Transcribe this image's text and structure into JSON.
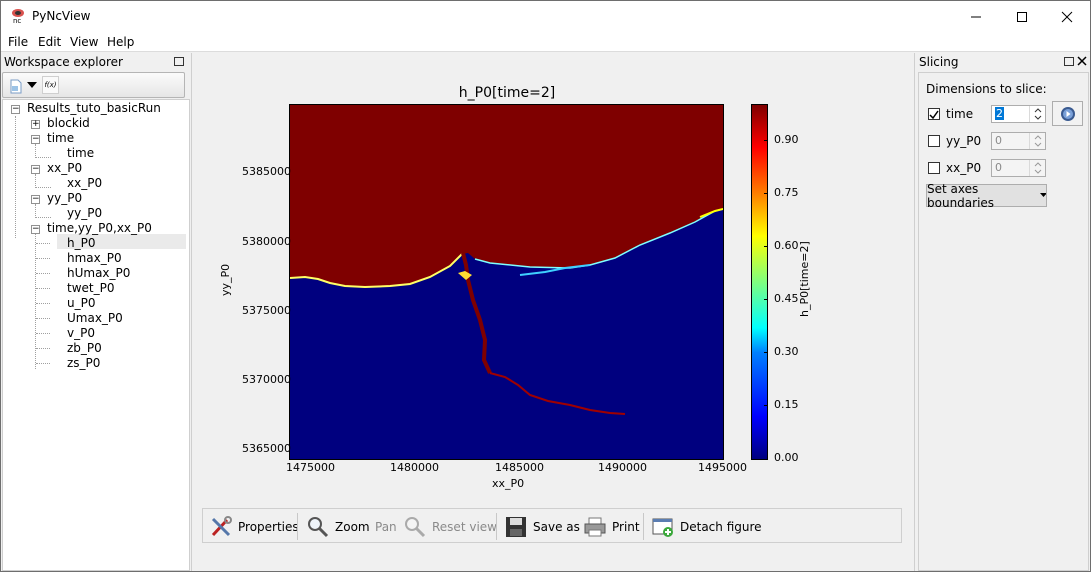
{
  "window": {
    "title": "PyNcView"
  },
  "menu": [
    "File",
    "Edit",
    "View",
    "Help"
  ],
  "workspace": {
    "title": "Workspace explorer",
    "root": "Results_tuto_basicRun",
    "nodes": [
      "blockid",
      "time",
      "time",
      "xx_P0",
      "xx_P0",
      "yy_P0",
      "yy_P0",
      "time,yy_P0,xx_P0"
    ],
    "variables": [
      "h_P0",
      "hmax_P0",
      "hUmax_P0",
      "twet_P0",
      "u_P0",
      "Umax_P0",
      "v_P0",
      "zb_P0",
      "zs_P0"
    ]
  },
  "figure": {
    "title": "h_P0[time=2]",
    "xlabel": "xx_P0",
    "ylabel": "yy_P0",
    "colorbar_label": "h_P0[time=2]",
    "xticks": [
      "1475000",
      "1480000",
      "1485000",
      "1490000",
      "1495000"
    ],
    "yticks": [
      "5385000",
      "5380000",
      "5375000",
      "5370000",
      "5365000"
    ],
    "cbticks": [
      "0.90",
      "0.75",
      "0.60",
      "0.45",
      "0.30",
      "0.15",
      "0.00"
    ],
    "colors": {
      "land": "#7f0000",
      "water": "#00007f"
    }
  },
  "chart_data": {
    "type": "heatmap",
    "title": "h_P0[time=2]",
    "xlabel": "xx_P0",
    "ylabel": "yy_P0",
    "xlim": [
      1474500,
      1495000
    ],
    "ylim": [
      5364000,
      5389000
    ],
    "colorbar": {
      "label": "h_P0[time=2]",
      "range": [
        0,
        0.99
      ],
      "ticks": [
        0,
        0.15,
        0.3,
        0.45,
        0.6,
        0.75,
        0.9
      ],
      "colormap": "jet"
    }
  },
  "toolbar": {
    "properties": "Properties",
    "zoom": "Zoom",
    "pan": "Pan",
    "reset": "Reset view",
    "save": "Save as",
    "print": "Print",
    "detach": "Detach figure"
  },
  "slicing": {
    "title": "Slicing",
    "heading": "Dimensions to slice:",
    "dims": [
      {
        "name": "time",
        "value": "2",
        "checked": true
      },
      {
        "name": "yy_P0",
        "value": "0",
        "checked": false
      },
      {
        "name": "xx_P0",
        "value": "0",
        "checked": false
      }
    ],
    "axes_button": "Set axes boundaries"
  }
}
